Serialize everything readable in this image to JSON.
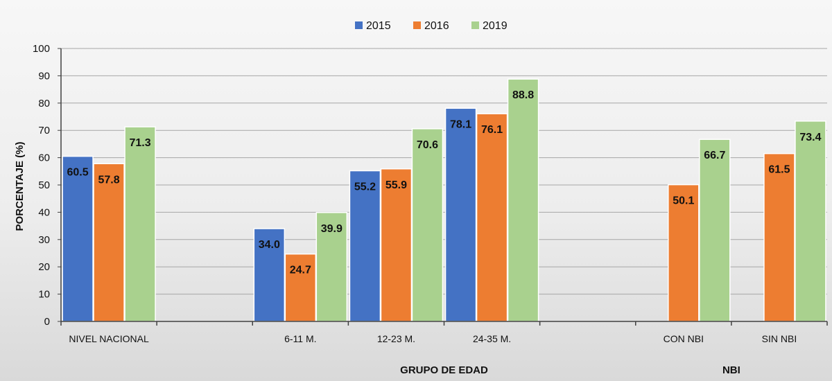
{
  "chart_data": {
    "type": "bar",
    "ylabel": "PORCENTAJE (%)",
    "ylim": [
      0,
      100
    ],
    "yticks": [
      0,
      10,
      20,
      30,
      40,
      50,
      60,
      70,
      80,
      90,
      100
    ],
    "grid": true,
    "legend_position": "top",
    "categories": [
      "NIVEL NACIONAL",
      "",
      "6-11 M.",
      "12-23 M.",
      "24-35 M.",
      "",
      "CON NBI",
      "SIN NBI"
    ],
    "groups": [
      {
        "label": "",
        "span": [
          0,
          1
        ]
      },
      {
        "label": "GRUPO DE EDAD",
        "span": [
          2,
          5
        ]
      },
      {
        "label": "NBI",
        "span": [
          6,
          7
        ]
      }
    ],
    "series": [
      {
        "name": "2015",
        "color": "#4472c4",
        "values": [
          60.5,
          null,
          34.0,
          55.2,
          78.1,
          null,
          null,
          null
        ],
        "labels": [
          "60.5",
          "",
          "34.0",
          "55.2",
          "78.1",
          "",
          "",
          ""
        ]
      },
      {
        "name": "2016",
        "color": "#ed7d31",
        "values": [
          57.8,
          null,
          24.7,
          55.9,
          76.1,
          null,
          50.1,
          61.5
        ],
        "labels": [
          "57.8",
          "",
          "24.7",
          "55.9",
          "76.1",
          "",
          "50.1",
          "61.5"
        ]
      },
      {
        "name": "2019",
        "color": "#a9d18e",
        "values": [
          71.3,
          null,
          39.9,
          70.6,
          88.8,
          null,
          66.7,
          73.4
        ],
        "labels": [
          "71.3",
          "",
          "39.9",
          "70.6",
          "88.8",
          "",
          "66.7",
          "73.4"
        ]
      }
    ]
  }
}
